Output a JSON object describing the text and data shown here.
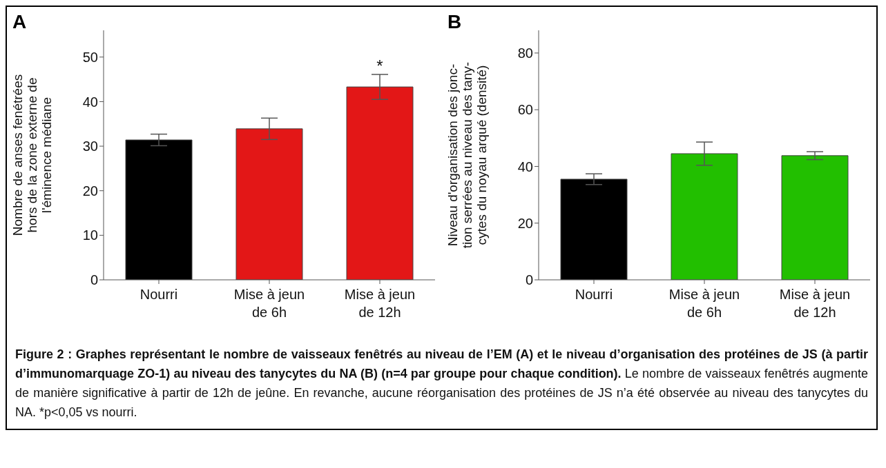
{
  "chart_data": [
    {
      "type": "bar",
      "title": "A",
      "ylabel": "Nombre de anses fenétrées\nhors de la zone externe de\nl'éminence médiane",
      "categories": [
        "Nourri",
        "Mise à jeun de 6h",
        "Mise à jeun de 12h"
      ],
      "values": [
        31.4,
        33.9,
        43.3
      ],
      "errors": [
        1.3,
        2.4,
        2.8
      ],
      "colors": [
        "#000000",
        "#e31717",
        "#e31717"
      ],
      "ylim": [
        0,
        56
      ],
      "yticks": [
        0,
        10,
        20,
        30,
        40,
        50
      ],
      "grid": false,
      "legend": false,
      "annotations": [
        {
          "text": "*",
          "x": "Mise à jeun de 12h",
          "y": 46.1
        }
      ]
    },
    {
      "type": "bar",
      "title": "B",
      "ylabel": "Niveau d'organisation des jonc-\ntion serrées au niveau des tany-\ncytes du noyau arqué (densité)",
      "categories": [
        "Nourri",
        "Mise à jeun de 6h",
        "Mise à jeun de 12h"
      ],
      "values": [
        35.5,
        44.5,
        43.8
      ],
      "errors": [
        1.9,
        4.1,
        1.4
      ],
      "colors": [
        "#000000",
        "#22bf00",
        "#22bf00"
      ],
      "ylim": [
        0,
        88
      ],
      "yticks": [
        0,
        20,
        40,
        60,
        80
      ],
      "grid": false,
      "legend": false,
      "annotations": [
        "Figure 2 : Graphes représentant le nombre de vaisseaux fenêtrés au niveau de l’EM (A) et le niveau d’organisation des protéines de JS (à partir d’immunomarquage ZO-1) au niveau des tanycytes du NA (B) (n=4 par groupe pour chaque condition).",
        "Le nombre de vaisseaux fenêtrés augmente de manière significative à partir de 12h de jeûne. En revanche, aucune réorganisation des protéines de JS n’a été observée au niveau des tanycytes du NA. *p<0,05 vs nourri."
      ]
    }
  ]
}
